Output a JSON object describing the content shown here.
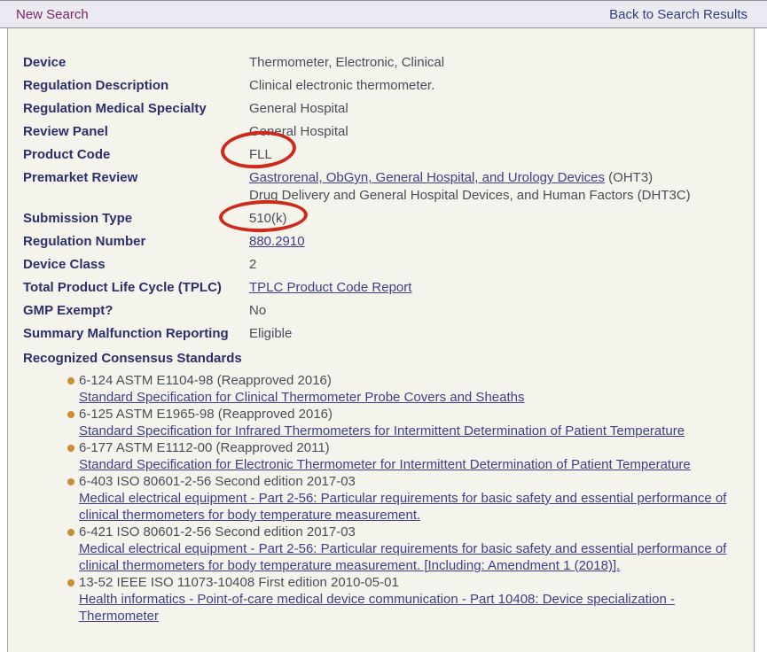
{
  "header": {
    "new_search": "New Search",
    "back_to_results": "Back to Search Results"
  },
  "fields": [
    {
      "label": "Device",
      "value": "Thermometer, Electronic, Clinical"
    },
    {
      "label": "Regulation Description",
      "value": "Clinical electronic thermometer."
    },
    {
      "label": "Regulation Medical Specialty",
      "value": "General Hospital"
    },
    {
      "label": "Review Panel",
      "value": "General Hospital"
    },
    {
      "label": "Product Code",
      "value": "FLL",
      "annotation": "red-circle"
    },
    {
      "label": "Premarket Review",
      "link_text": "Gastrorenal, ObGyn, General Hospital, and Urology Devices",
      "link_suffix": " (OHT3)",
      "line2": "Drug Delivery and General Hospital Devices, and Human Factors (DHT3C)"
    },
    {
      "label": "Submission Type",
      "value": "510(k)",
      "annotation": "red-circle"
    },
    {
      "label": "Regulation Number",
      "value": "880.2910",
      "value_is_link": true
    },
    {
      "label": "Device Class",
      "value": "2"
    },
    {
      "label": "Total Product Life Cycle (TPLC)",
      "value": "TPLC Product Code Report",
      "value_is_link": true
    },
    {
      "label": "GMP Exempt?",
      "value": "No"
    },
    {
      "label": "Summary Malfunction Reporting",
      "value": "Eligible"
    }
  ],
  "standards": {
    "title": "Recognized Consensus Standards",
    "items": [
      {
        "code": "6-124 ASTM E1104-98 (Reapproved 2016)",
        "link": "Standard Specification for Clinical Thermometer Probe Covers and Sheaths"
      },
      {
        "code": "6-125 ASTM E1965-98 (Reapproved 2016)",
        "link": "Standard Specification for Infrared Thermometers for Intermittent Determination of Patient Temperature"
      },
      {
        "code": "6-177 ASTM E1112-00 (Reapproved 2011)",
        "link": "Standard Specification for Electronic Thermometer for Intermittent Determination of Patient Temperature"
      },
      {
        "code": "6-403 ISO 80601-2-56 Second edition 2017-03",
        "link": "Medical electrical equipment - Part 2-56: Particular requirements for basic safety and essential performance of clinical thermometers for body temperature measurement."
      },
      {
        "code": "6-421 ISO 80601-2-56 Second edition 2017-03",
        "link": "Medical electrical equipment - Part 2-56: Particular requirements for basic safety and essential performance of clinical thermometers for body temperature measurement. [Including: Amendment 1 (2018)]."
      },
      {
        "code": "13-52 IEEE ISO 11073-10408 First edition 2010-05-01",
        "link": "Health informatics - Point-of-care medical device communication - Part 10408: Device specialization - Thermometer"
      }
    ]
  },
  "colors": {
    "header_link": "#7d2462",
    "back_link": "#323e7c",
    "label_navy": "#2c2f6c",
    "value_gray": "#4c4c5a",
    "link_purple": "#3e3e8c",
    "bullet_orange": "#cc8e33",
    "annotation_red": "#cd2a1b",
    "content_bg": "#f5f4ec",
    "header_bg": "#eceaf1"
  }
}
